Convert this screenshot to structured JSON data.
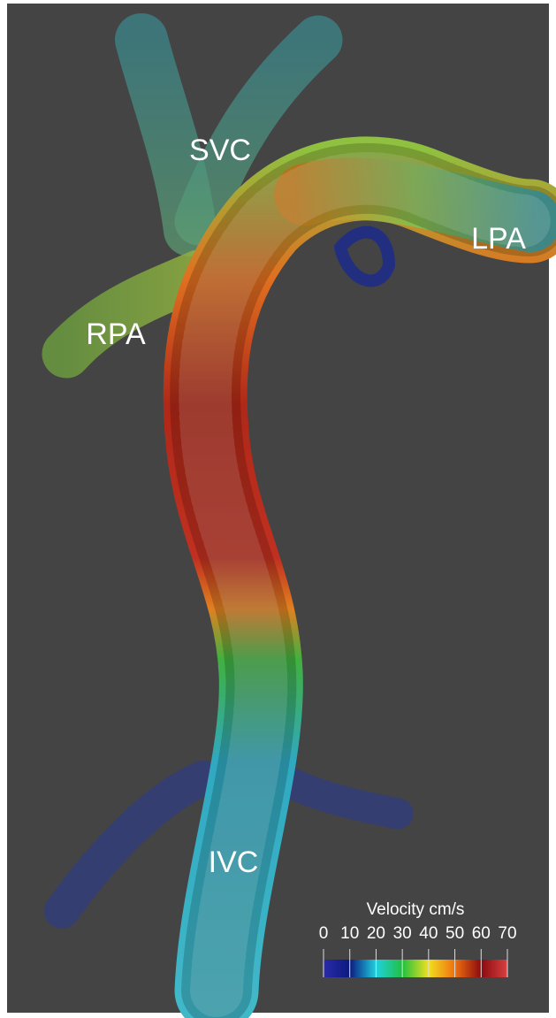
{
  "labels": [
    "SVC",
    "LPA",
    "RPA",
    "IVC"
  ],
  "colorbar": {
    "title": "Velocity cm/s",
    "ticks": [
      0,
      10,
      20,
      30,
      40,
      50,
      60,
      70
    ],
    "colors": [
      "#2a2aa8",
      "#0a1a80",
      "#20d0e0",
      "#20c040",
      "#f0e020",
      "#f07010",
      "#8a0a10",
      "#d84040"
    ]
  }
}
